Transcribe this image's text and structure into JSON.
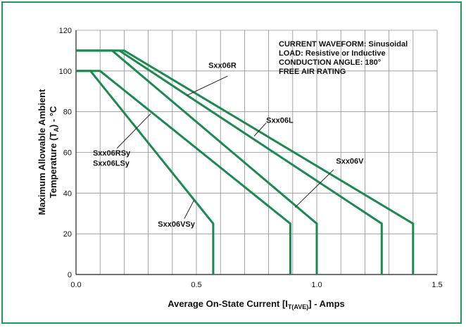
{
  "colors": {
    "frame": "#1f9a5b",
    "curve": "#1b8a4f",
    "grid": "#909090",
    "axis": "#222222",
    "text": "#111111"
  },
  "chart_data": {
    "type": "line",
    "title": "",
    "xlabel": "Average On-State Current [I",
    "xlabel_sub": "T(AVE)",
    "xlabel_tail": "] - Amps",
    "ylabel_line1": "Maximum Allowable Ambient",
    "ylabel_line2_pre": "Temperature (T",
    "ylabel_sub": "A",
    "ylabel_line2_post": ") - °C",
    "xlim": [
      0,
      1.5
    ],
    "ylim": [
      0,
      120
    ],
    "xticks": [
      "0.0",
      "0.5",
      "1.0",
      "1.5"
    ],
    "yticks": [
      "0",
      "20",
      "40",
      "60",
      "80",
      "100",
      "120"
    ],
    "grid": true,
    "annotation_lines": [
      "CURRENT WAVEFORM: Sinusoidal",
      "LOAD: Resistive or Inductive",
      "CONDUCTION ANGLE: 180°",
      "FREE AIR RATING"
    ],
    "series": [
      {
        "name": "Sxx06R",
        "points": [
          [
            0,
            110
          ],
          [
            0.2,
            110
          ],
          [
            1.4,
            25
          ],
          [
            1.4,
            0
          ]
        ]
      },
      {
        "name": "Sxx06L",
        "points": [
          [
            0,
            110
          ],
          [
            0.18,
            110
          ],
          [
            1.27,
            25
          ],
          [
            1.27,
            0
          ]
        ]
      },
      {
        "name": "Sxx06V",
        "points": [
          [
            0,
            110
          ],
          [
            0.15,
            110
          ],
          [
            1.0,
            25
          ],
          [
            1.0,
            0
          ]
        ]
      },
      {
        "name": "Sxx06RSy / Sxx06LSy",
        "points": [
          [
            0,
            100
          ],
          [
            0.1,
            100
          ],
          [
            0.89,
            25
          ],
          [
            0.89,
            0
          ]
        ]
      },
      {
        "name": "Sxx06VSy",
        "points": [
          [
            0,
            100
          ],
          [
            0.06,
            100
          ],
          [
            0.57,
            25
          ],
          [
            0.57,
            0
          ]
        ]
      }
    ],
    "labels": [
      {
        "text": "Sxx06R",
        "x": 0.55,
        "y": 101.5
      },
      {
        "text": "Sxx06L",
        "x": 0.79,
        "y": 74.5
      },
      {
        "text": "Sxx06V",
        "x": 1.08,
        "y": 54.5
      },
      {
        "text": "Sxx06RSy",
        "x": 0.07,
        "y": 58.5
      },
      {
        "text": "Sxx06LSy",
        "x": 0.07,
        "y": 53.5
      },
      {
        "text": "Sxx06VSy",
        "x": 0.34,
        "y": 23.5
      }
    ],
    "leaders": [
      {
        "from": [
          0.63,
          97.5
        ],
        "to": [
          0.46,
          88
        ]
      },
      {
        "from": [
          0.79,
          74.5
        ],
        "to": [
          0.74,
          68
        ]
      },
      {
        "from": [
          1.07,
          51.5
        ],
        "to": [
          0.91,
          33
        ]
      },
      {
        "from": [
          0.17,
          62
        ],
        "to": [
          0.31,
          79
        ]
      },
      {
        "from": [
          0.45,
          27.5
        ],
        "to": [
          0.49,
          36.5
        ]
      }
    ]
  }
}
